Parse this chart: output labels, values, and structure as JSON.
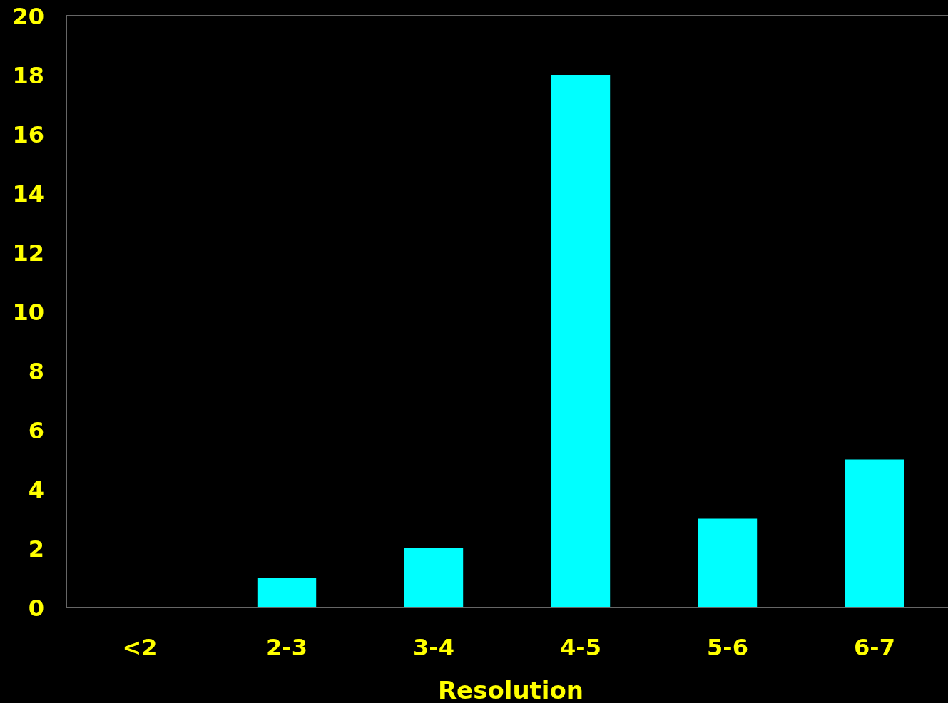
{
  "chart_data": {
    "type": "bar",
    "xlabel": "Resolution",
    "categories": [
      "<2",
      "2-3",
      "3-4",
      "4-5",
      "5-6",
      "6-7"
    ],
    "values": [
      0,
      1,
      2,
      18,
      3,
      5
    ],
    "color": "#00ffff",
    "ylim": [
      0,
      20
    ],
    "yticks": [
      0,
      2,
      4,
      6,
      8,
      10,
      12,
      14,
      16,
      18,
      20
    ],
    "grid": false
  }
}
